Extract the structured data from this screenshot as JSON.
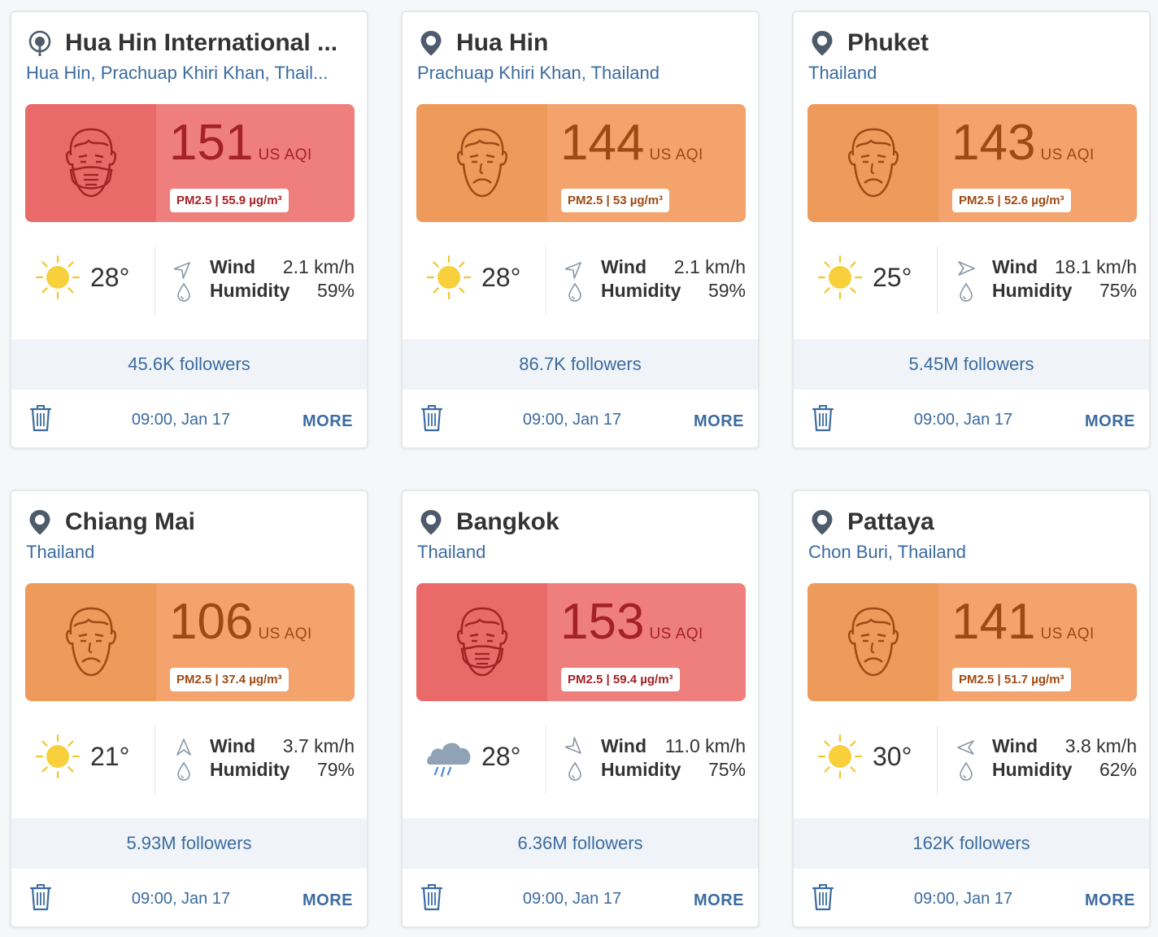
{
  "colors": {
    "red": "#ee7f7d",
    "orange": "#f3a36b",
    "link": "#3b6ba0"
  },
  "cards": [
    {
      "title": "Hua Hin International ...",
      "subtitle": "Hua Hin, Prachuap Khiri Khan, Thail...",
      "location_icon": "station-icon",
      "aqi": "151",
      "aqi_unit": "US AQI",
      "level": "red",
      "face": "mask-face-icon",
      "pm": "PM2.5 | 55.9 µg/m³",
      "weather_icon": "sun-icon",
      "temp": "28°",
      "wind_label": "Wind",
      "wind": "2.1 km/h",
      "wind_dir": 45,
      "humidity_label": "Humidity",
      "humidity": "59%",
      "followers": "45.6K followers",
      "time": "09:00, Jan 17",
      "more": "MORE"
    },
    {
      "title": "Hua Hin",
      "subtitle": "Prachuap Khiri Khan, Thailand",
      "location_icon": "map-pin-icon",
      "aqi": "144",
      "aqi_unit": "US AQI",
      "level": "orange",
      "face": "sad-face-icon",
      "pm": "PM2.5 | 53 µg/m³",
      "weather_icon": "sun-icon",
      "temp": "28°",
      "wind_label": "Wind",
      "wind": "2.1 km/h",
      "wind_dir": 45,
      "humidity_label": "Humidity",
      "humidity": "59%",
      "followers": "86.7K followers",
      "time": "09:00, Jan 17",
      "more": "MORE"
    },
    {
      "title": "Phuket",
      "subtitle": "Thailand",
      "location_icon": "map-pin-icon",
      "aqi": "143",
      "aqi_unit": "US AQI",
      "level": "orange",
      "face": "sad-face-icon",
      "pm": "PM2.5 | 52.6 µg/m³",
      "weather_icon": "sun-icon",
      "temp": "25°",
      "wind_label": "Wind",
      "wind": "18.1 km/h",
      "wind_dir": 90,
      "humidity_label": "Humidity",
      "humidity": "75%",
      "followers": "5.45M followers",
      "time": "09:00, Jan 17",
      "more": "MORE"
    },
    {
      "title": "Chiang Mai",
      "subtitle": "Thailand",
      "location_icon": "map-pin-icon",
      "aqi": "106",
      "aqi_unit": "US AQI",
      "level": "orange",
      "face": "sad-face-icon",
      "pm": "PM2.5 | 37.4 µg/m³",
      "weather_icon": "sun-icon",
      "temp": "21°",
      "wind_label": "Wind",
      "wind": "3.7 km/h",
      "wind_dir": 0,
      "humidity_label": "Humidity",
      "humidity": "79%",
      "followers": "5.93M followers",
      "time": "09:00, Jan 17",
      "more": "MORE"
    },
    {
      "title": "Bangkok",
      "subtitle": "Thailand",
      "location_icon": "map-pin-icon",
      "aqi": "153",
      "aqi_unit": "US AQI",
      "level": "red",
      "face": "mask-face-icon",
      "pm": "PM2.5 | 59.4 µg/m³",
      "weather_icon": "rain-cloud-icon",
      "temp": "28°",
      "wind_label": "Wind",
      "wind": "11.0 km/h",
      "wind_dir": 135,
      "humidity_label": "Humidity",
      "humidity": "75%",
      "followers": "6.36M followers",
      "time": "09:00, Jan 17",
      "more": "MORE"
    },
    {
      "title": "Pattaya",
      "subtitle": "Chon Buri, Thailand",
      "location_icon": "map-pin-icon",
      "aqi": "141",
      "aqi_unit": "US AQI",
      "level": "orange",
      "face": "sad-face-icon",
      "pm": "PM2.5 | 51.7 µg/m³",
      "weather_icon": "sun-icon",
      "temp": "30°",
      "wind_label": "Wind",
      "wind": "3.8 km/h",
      "wind_dir": 270,
      "humidity_label": "Humidity",
      "humidity": "62%",
      "followers": "162K followers",
      "time": "09:00, Jan 17",
      "more": "MORE"
    }
  ]
}
